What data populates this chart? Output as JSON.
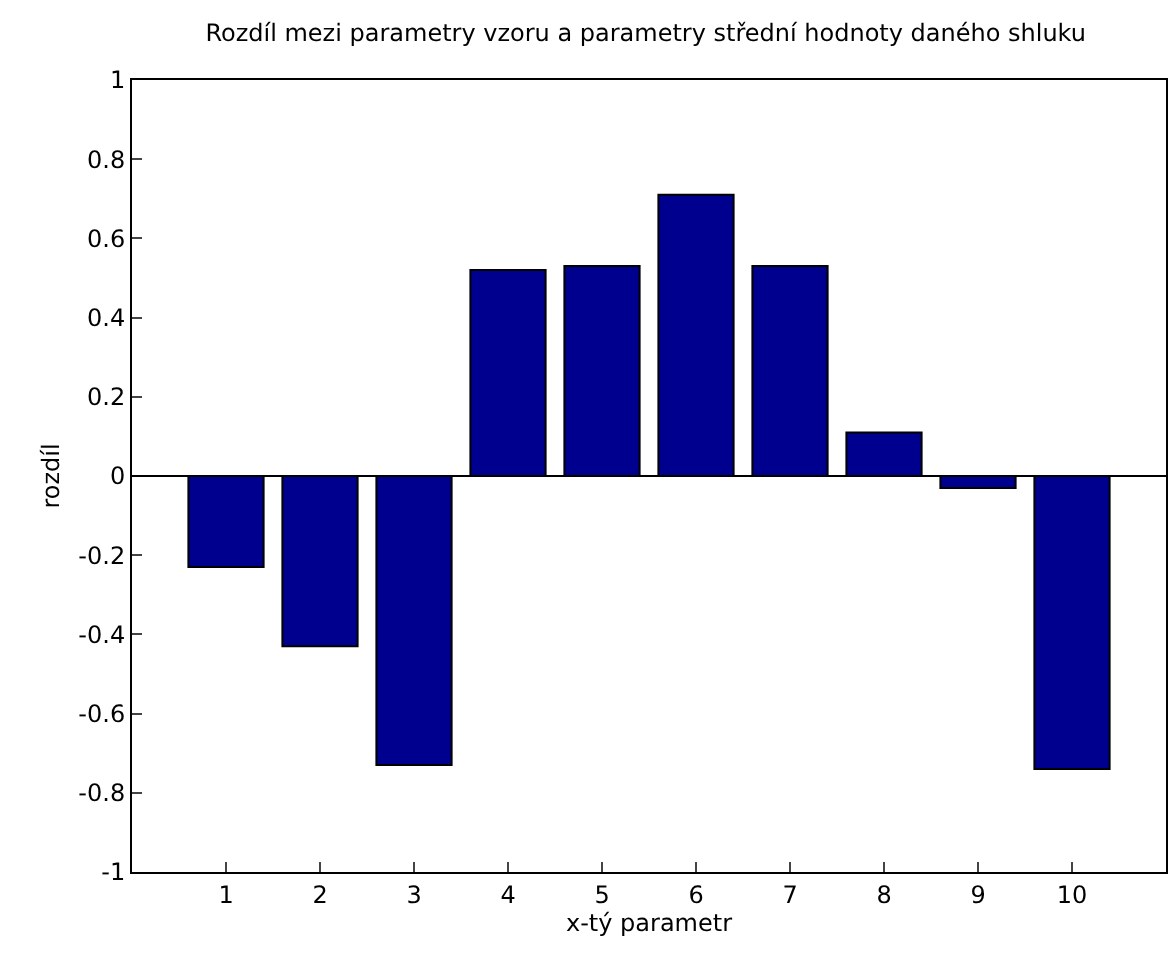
{
  "chart_data": {
    "type": "bar",
    "title": "Rozdíl mezi parametry vzoru a parametry střední hodnoty daného shluku",
    "xlabel": "x-tý parametr",
    "ylabel": "rozdíl",
    "x": [
      1,
      2,
      3,
      4,
      5,
      6,
      7,
      8,
      9,
      10
    ],
    "values": [
      -0.23,
      -0.43,
      -0.73,
      0.52,
      0.53,
      0.71,
      0.53,
      0.11,
      -0.03,
      -0.74
    ],
    "color": "#00008f",
    "xlim": [
      0,
      11
    ],
    "xticks": [
      1,
      2,
      3,
      4,
      5,
      6,
      7,
      8,
      9,
      10
    ],
    "ylim": [
      -1,
      1
    ],
    "yticks": [
      -1,
      -0.8,
      -0.6,
      -0.4,
      -0.2,
      0,
      0.2,
      0.4,
      0.6,
      0.8,
      1
    ],
    "ref_lines": [
      {
        "axis": "y",
        "value": 0,
        "color": "#000000"
      }
    ],
    "legend": false
  }
}
